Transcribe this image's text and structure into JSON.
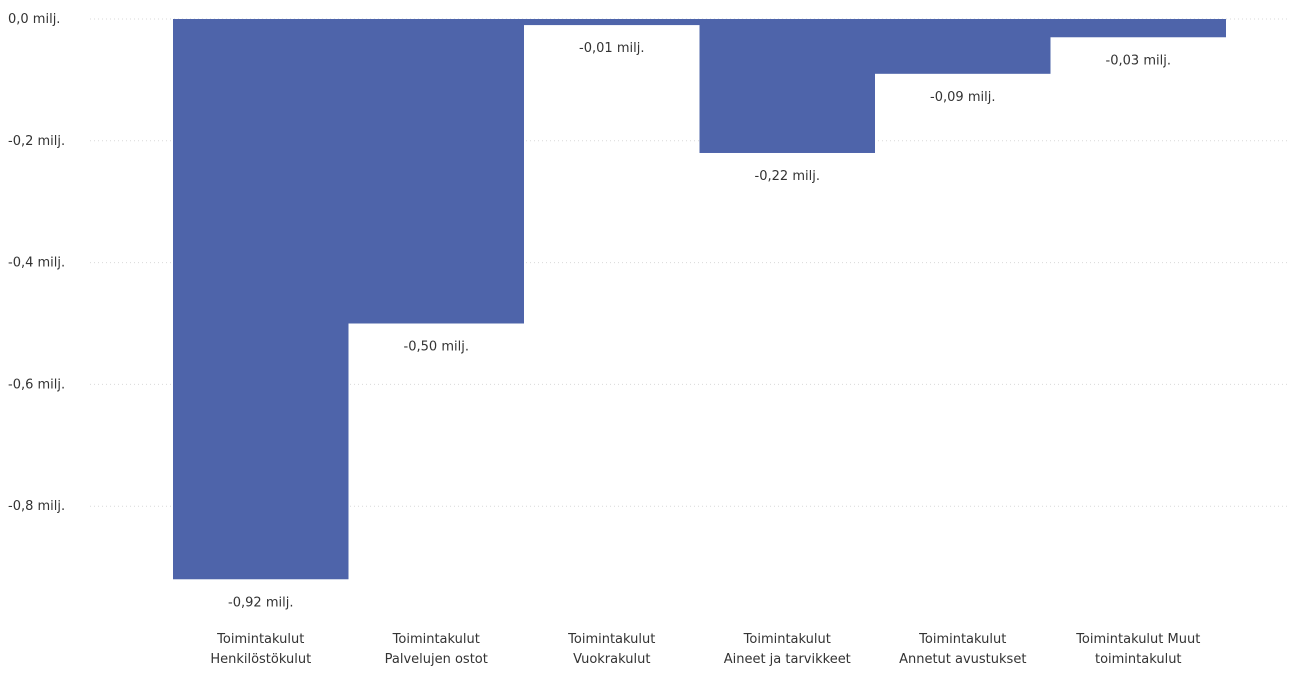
{
  "chart_data": {
    "type": "bar",
    "style": "waterfall",
    "title": "",
    "xlabel": "",
    "ylabel": "",
    "ylim": [
      -0.95,
      0.0
    ],
    "grid": true,
    "bar_color": "#4E64AA",
    "grid_color": "#D9D9D9",
    "y_ticks": [
      {
        "value": 0.0,
        "label": "0,0 milj."
      },
      {
        "value": -0.2,
        "label": "-0,2 milj."
      },
      {
        "value": -0.4,
        "label": "-0,4 milj."
      },
      {
        "value": -0.6,
        "label": "-0,6 milj."
      },
      {
        "value": -0.8,
        "label": "-0,8 milj."
      }
    ],
    "categories": [
      [
        "Toimintakulut",
        "Henkilöstökulut"
      ],
      [
        "Toimintakulut",
        "Palvelujen ostot"
      ],
      [
        "Toimintakulut",
        "Vuokrakulut"
      ],
      [
        "Toimintakulut",
        "Aineet ja tarvikkeet"
      ],
      [
        "Toimintakulut",
        "Annetut avustukset"
      ],
      [
        "Toimintakulut Muut",
        "toimintakulut"
      ]
    ],
    "bars": [
      {
        "top": 0.0,
        "bottom": -0.92,
        "label": "-0,92 milj."
      },
      {
        "top": 0.0,
        "bottom": -0.5,
        "label": "-0,50 milj."
      },
      {
        "top": 0.0,
        "bottom": -0.01,
        "label": "-0,01 milj."
      },
      {
        "top": 0.0,
        "bottom": -0.22,
        "label": "-0,22 milj."
      },
      {
        "top": 0.0,
        "bottom": -0.09,
        "label": "-0,09 milj."
      },
      {
        "top": 0.0,
        "bottom": -0.03,
        "label": "-0,03 milj."
      }
    ]
  }
}
